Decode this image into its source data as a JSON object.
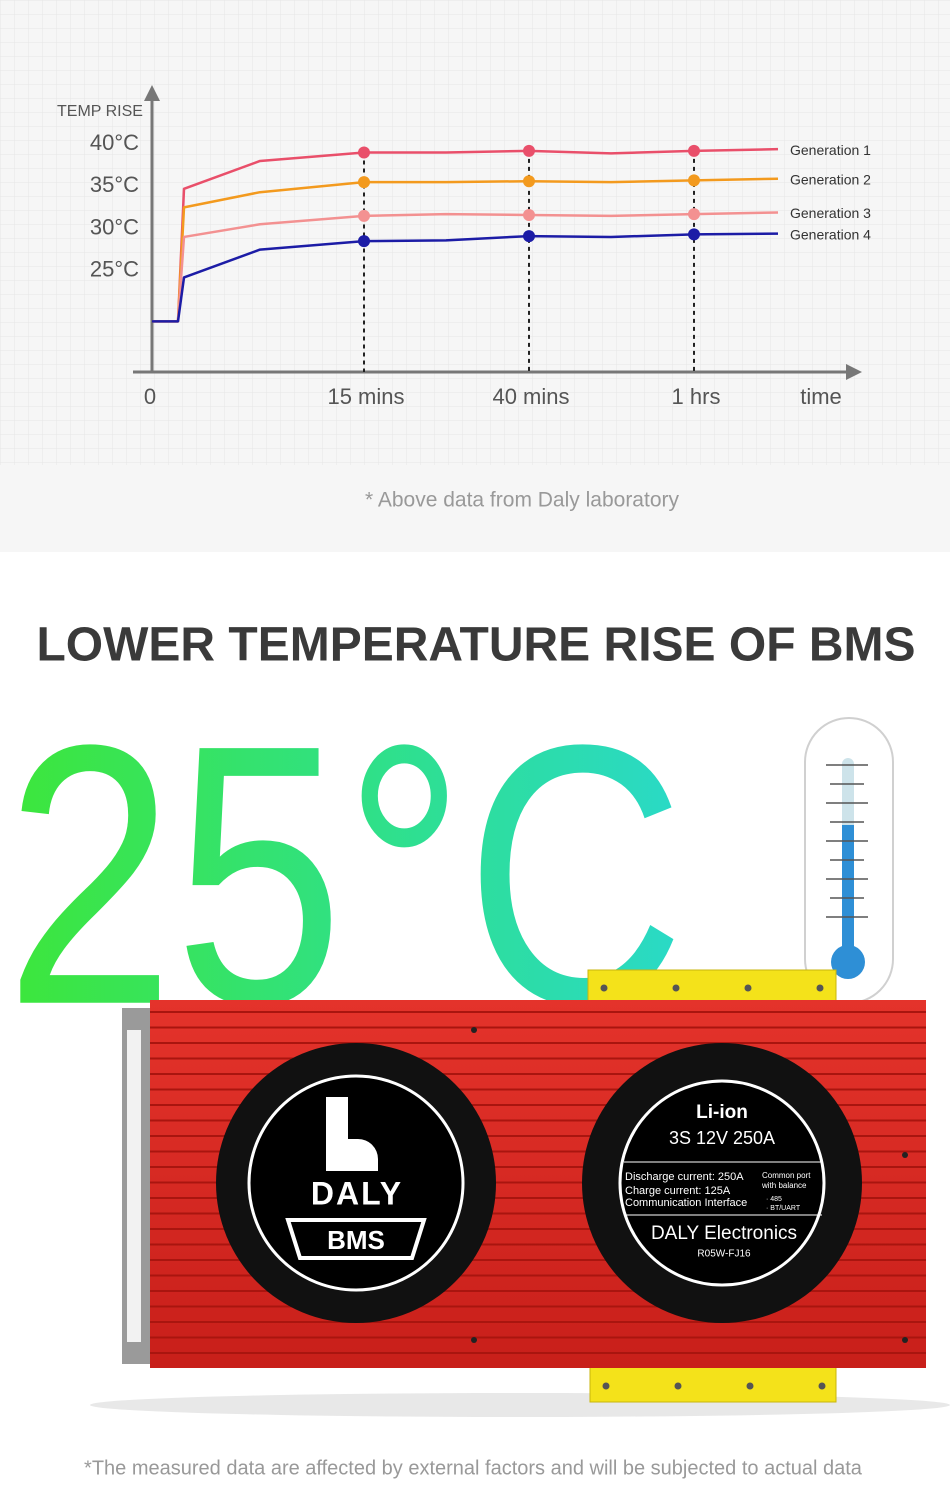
{
  "chart_data": {
    "type": "line",
    "y_axis_label": "TEMP RISE",
    "x_axis_label": "time",
    "categories": [
      "0",
      null,
      null,
      null,
      "15 mins",
      null,
      "40 mins",
      null,
      "1 hrs",
      null
    ],
    "series": [
      {
        "name": "Generation 1",
        "color": "#e94f6a",
        "values": [
          19,
          19,
          34.7,
          38,
          39,
          39,
          39.2,
          38.9,
          39.2,
          39.4
        ]
      },
      {
        "name": "Generation 2",
        "color": "#f39a1e",
        "values": [
          19,
          19,
          32.5,
          34.3,
          35.5,
          35.5,
          35.6,
          35.5,
          35.7,
          35.9
        ]
      },
      {
        "name": "Generation 3",
        "color": "#f39191",
        "values": [
          19,
          19,
          29,
          30.5,
          31.5,
          31.7,
          31.6,
          31.5,
          31.7,
          31.9
        ]
      },
      {
        "name": "Generation 4",
        "color": "#1c1ca6",
        "values": [
          19,
          19,
          24.2,
          27.5,
          28.5,
          28.6,
          29.1,
          29,
          29.3,
          29.4
        ]
      }
    ],
    "ylim": [
      13,
      47
    ],
    "yticks": [
      {
        "value": 25,
        "label": "25°C"
      },
      {
        "value": 30,
        "label": "30°C"
      },
      {
        "value": 35,
        "label": "35°C"
      },
      {
        "value": 40,
        "label": "40°C"
      }
    ],
    "note": "* Above data from Daly laboratory"
  },
  "headline": "LOWER TEMPERATURE RISE OF BMS",
  "big_temperature": "25°C",
  "product": {
    "logo_text": "DALY",
    "logo_badge": "BMS",
    "label_type": "Li-ion",
    "label_spec": "3S 12V 250A",
    "discharge": "Discharge current:  250A",
    "charge": "Charge current:  125A",
    "comm": "Communication Interface",
    "port_1": "Common port",
    "port_2": "with balance",
    "port_3": "· 485",
    "port_4": "· BT/UART",
    "brand": "DALY Electronics",
    "model": "R05W-FJ16"
  },
  "footer_note": "*The measured data are affected by external factors and will be subjected to actual data"
}
